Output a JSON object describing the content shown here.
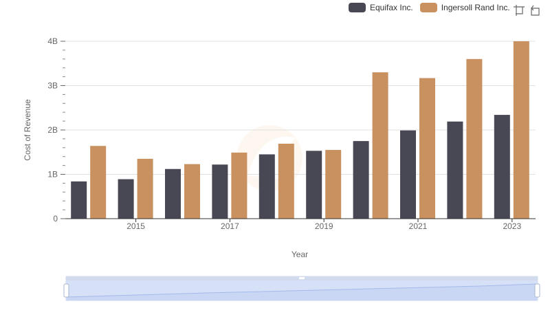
{
  "legend": {
    "items": [
      {
        "label": "Equifax Inc.",
        "color": "#484854"
      },
      {
        "label": "Ingersoll Rand Inc.",
        "color": "#c8915f"
      }
    ]
  },
  "toolbox": {
    "icons": [
      "zoom-icon",
      "restore-icon"
    ]
  },
  "chart_data": {
    "type": "bar",
    "categories": [
      "2014",
      "2015",
      "2016",
      "2017",
      "2018",
      "2019",
      "2020",
      "2021",
      "2022",
      "2023"
    ],
    "x_tick_labels": [
      "2015",
      "2017",
      "2019",
      "2021",
      "2023"
    ],
    "series": [
      {
        "name": "Equifax Inc.",
        "color": "#484854",
        "values": [
          0.84,
          0.89,
          1.12,
          1.22,
          1.45,
          1.53,
          1.75,
          1.99,
          2.19,
          2.34
        ]
      },
      {
        "name": "Ingersoll Rand Inc.",
        "color": "#c8915f",
        "values": [
          1.64,
          1.35,
          1.23,
          1.49,
          1.69,
          1.55,
          3.3,
          3.17,
          3.6,
          4.0
        ]
      }
    ],
    "xlabel": "Year",
    "ylabel": "Cost of Revenue",
    "ylim": [
      0,
      4
    ],
    "y_ticks": [
      {
        "value": 0,
        "label": "0"
      },
      {
        "value": 1,
        "label": "1B"
      },
      {
        "value": 2,
        "label": "2B"
      },
      {
        "value": 3,
        "label": "3B"
      },
      {
        "value": 4,
        "label": "4B"
      }
    ],
    "grid": true,
    "legend_position": "top-right",
    "data_zoom": {
      "start": 0,
      "end": 100
    }
  }
}
